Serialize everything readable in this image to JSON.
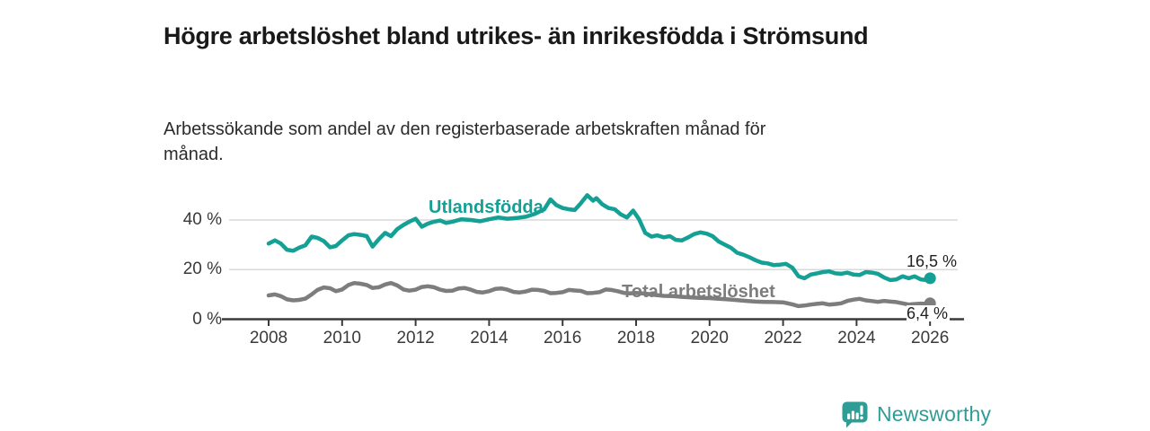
{
  "header": {
    "title": "Högre arbetslöshet bland utrikes- än inrikesfödda i Strömsund",
    "subtitle": "Arbetssökande som andel av den registerbaserade arbetskraften månad för månad."
  },
  "footer": {
    "brand": "Newsworthy"
  },
  "colors": {
    "accent_teal": "#14a094",
    "secondary_gray": "#7d7d7d",
    "brand_teal": "#2f9d95",
    "gridline": "#d9d9d9",
    "axis": "#3a3a3a",
    "text_dark": "#191919"
  },
  "chart_data": {
    "type": "line",
    "title": "Högre arbetslöshet bland utrikes- än inrikesfödda i Strömsund",
    "subtitle": "Arbetssökande som andel av den registerbaserade arbetskraften månad för månad.",
    "xlabel": "",
    "ylabel": "",
    "ylim": [
      0,
      52
    ],
    "xlim": [
      2006.9,
      2026.9
    ],
    "grid": "horizontal",
    "legend_position": "inline-labels",
    "y_ticks": [
      {
        "value": 0,
        "label": "0 %"
      },
      {
        "value": 20,
        "label": "20 %"
      },
      {
        "value": 40,
        "label": "40 %"
      }
    ],
    "x_ticks": [
      {
        "value": 2008,
        "label": "2008"
      },
      {
        "value": 2010,
        "label": "2010"
      },
      {
        "value": 2012,
        "label": "2012"
      },
      {
        "value": 2014,
        "label": "2014"
      },
      {
        "value": 2016,
        "label": "2016"
      },
      {
        "value": 2018,
        "label": "2018"
      },
      {
        "value": 2020,
        "label": "2020"
      },
      {
        "value": 2022,
        "label": "2022"
      },
      {
        "value": 2024,
        "label": "2024"
      },
      {
        "value": 2026,
        "label": "2026"
      }
    ],
    "series": [
      {
        "name": "Utlandsfödda",
        "color": "#14a094",
        "end_label": "16,5 %",
        "end_value": 16.5,
        "x": [
          2008.0,
          2008.17,
          2008.33,
          2008.5,
          2008.67,
          2008.83,
          2009.0,
          2009.17,
          2009.33,
          2009.5,
          2009.67,
          2009.83,
          2010.0,
          2010.17,
          2010.33,
          2010.5,
          2010.67,
          2010.83,
          2011.0,
          2011.17,
          2011.33,
          2011.5,
          2011.67,
          2011.83,
          2012.0,
          2012.17,
          2012.33,
          2012.5,
          2012.67,
          2012.83,
          2013.0,
          2013.25,
          2013.5,
          2013.75,
          2014.0,
          2014.25,
          2014.5,
          2014.75,
          2015.0,
          2015.25,
          2015.5,
          2015.67,
          2015.83,
          2016.0,
          2016.17,
          2016.33,
          2016.5,
          2016.67,
          2016.83,
          2016.92,
          2017.08,
          2017.25,
          2017.42,
          2017.58,
          2017.75,
          2017.92,
          2018.08,
          2018.25,
          2018.42,
          2018.58,
          2018.75,
          2018.92,
          2019.08,
          2019.25,
          2019.42,
          2019.58,
          2019.75,
          2019.92,
          2020.08,
          2020.25,
          2020.42,
          2020.58,
          2020.75,
          2020.92,
          2021.08,
          2021.25,
          2021.42,
          2021.58,
          2021.75,
          2021.92,
          2022.08,
          2022.25,
          2022.42,
          2022.58,
          2022.75,
          2022.92,
          2023.08,
          2023.25,
          2023.42,
          2023.58,
          2023.75,
          2023.92,
          2024.08,
          2024.25,
          2024.42,
          2024.58,
          2024.75,
          2024.92,
          2025.08,
          2025.25,
          2025.42,
          2025.58,
          2025.75,
          2025.92,
          2026.0
        ],
        "values": [
          30.5,
          31.8,
          30.5,
          28.0,
          27.6,
          28.8,
          29.8,
          33.3,
          32.8,
          31.5,
          29.0,
          29.5,
          31.8,
          33.8,
          34.3,
          34.0,
          33.5,
          29.3,
          32.3,
          34.8,
          33.5,
          36.3,
          38.0,
          39.3,
          40.5,
          37.3,
          38.5,
          39.3,
          39.8,
          38.8,
          39.3,
          40.3,
          40.0,
          39.5,
          40.3,
          41.0,
          40.5,
          40.8,
          41.3,
          42.5,
          44.3,
          48.3,
          46.0,
          44.8,
          44.3,
          44.0,
          46.8,
          50.0,
          47.8,
          48.8,
          46.3,
          44.8,
          44.3,
          42.3,
          41.0,
          43.8,
          40.3,
          34.8,
          33.3,
          33.8,
          33.0,
          33.5,
          32.0,
          31.8,
          33.0,
          34.3,
          35.0,
          34.5,
          33.5,
          31.3,
          30.0,
          28.8,
          26.8,
          26.0,
          25.0,
          23.8,
          22.8,
          22.5,
          21.8,
          22.0,
          22.3,
          20.8,
          17.3,
          16.5,
          18.0,
          18.5,
          19.0,
          19.3,
          18.5,
          18.3,
          18.8,
          18.0,
          17.8,
          19.0,
          18.8,
          18.3,
          16.8,
          15.8,
          16.0,
          17.3,
          16.5,
          17.3,
          16.0,
          15.8,
          16.5
        ]
      },
      {
        "name": "Total arbetslöshet",
        "color": "#7d7d7d",
        "end_label": "6,4 %",
        "end_value": 6.4,
        "x": [
          2008.0,
          2008.17,
          2008.33,
          2008.5,
          2008.67,
          2008.83,
          2009.0,
          2009.17,
          2009.33,
          2009.5,
          2009.67,
          2009.83,
          2010.0,
          2010.17,
          2010.33,
          2010.5,
          2010.67,
          2010.83,
          2011.0,
          2011.17,
          2011.33,
          2011.5,
          2011.67,
          2011.83,
          2012.0,
          2012.17,
          2012.33,
          2012.5,
          2012.67,
          2012.83,
          2013.0,
          2013.17,
          2013.33,
          2013.5,
          2013.67,
          2013.83,
          2014.0,
          2014.17,
          2014.33,
          2014.5,
          2014.67,
          2014.83,
          2015.0,
          2015.17,
          2015.33,
          2015.5,
          2015.67,
          2015.83,
          2016.0,
          2016.17,
          2016.33,
          2016.5,
          2016.67,
          2016.83,
          2017.0,
          2017.17,
          2017.33,
          2017.5,
          2017.67,
          2017.83,
          2018.0,
          2018.25,
          2018.5,
          2018.75,
          2019.0,
          2019.25,
          2019.5,
          2019.75,
          2020.0,
          2020.25,
          2020.5,
          2020.75,
          2021.0,
          2021.25,
          2021.5,
          2021.75,
          2022.0,
          2022.25,
          2022.42,
          2022.58,
          2022.75,
          2022.92,
          2023.08,
          2023.25,
          2023.42,
          2023.58,
          2023.75,
          2023.92,
          2024.08,
          2024.25,
          2024.42,
          2024.58,
          2024.75,
          2024.92,
          2025.08,
          2025.25,
          2025.42,
          2025.58,
          2025.75,
          2025.92,
          2026.0
        ],
        "values": [
          9.6,
          10.0,
          9.3,
          8.0,
          7.6,
          7.8,
          8.3,
          10.0,
          11.8,
          12.8,
          12.5,
          11.3,
          12.0,
          13.8,
          14.6,
          14.3,
          13.8,
          12.6,
          12.9,
          14.0,
          14.6,
          13.6,
          12.0,
          11.5,
          11.9,
          13.0,
          13.3,
          12.9,
          11.9,
          11.4,
          11.5,
          12.4,
          12.6,
          11.9,
          11.0,
          10.8,
          11.3,
          12.2,
          12.4,
          11.9,
          11.0,
          10.8,
          11.2,
          11.9,
          11.8,
          11.4,
          10.5,
          10.6,
          10.9,
          11.8,
          11.6,
          11.4,
          10.5,
          10.6,
          10.9,
          12.0,
          11.8,
          11.3,
          10.6,
          10.4,
          10.6,
          10.3,
          9.8,
          9.4,
          9.3,
          9.0,
          8.8,
          8.6,
          8.5,
          8.2,
          8.0,
          7.7,
          7.4,
          7.1,
          7.0,
          6.9,
          6.8,
          6.0,
          5.3,
          5.5,
          5.9,
          6.2,
          6.4,
          5.9,
          6.1,
          6.4,
          7.4,
          7.9,
          8.2,
          7.6,
          7.3,
          7.0,
          7.4,
          7.1,
          6.9,
          6.4,
          5.9,
          6.1,
          6.3,
          6.2,
          6.4
        ]
      }
    ]
  }
}
